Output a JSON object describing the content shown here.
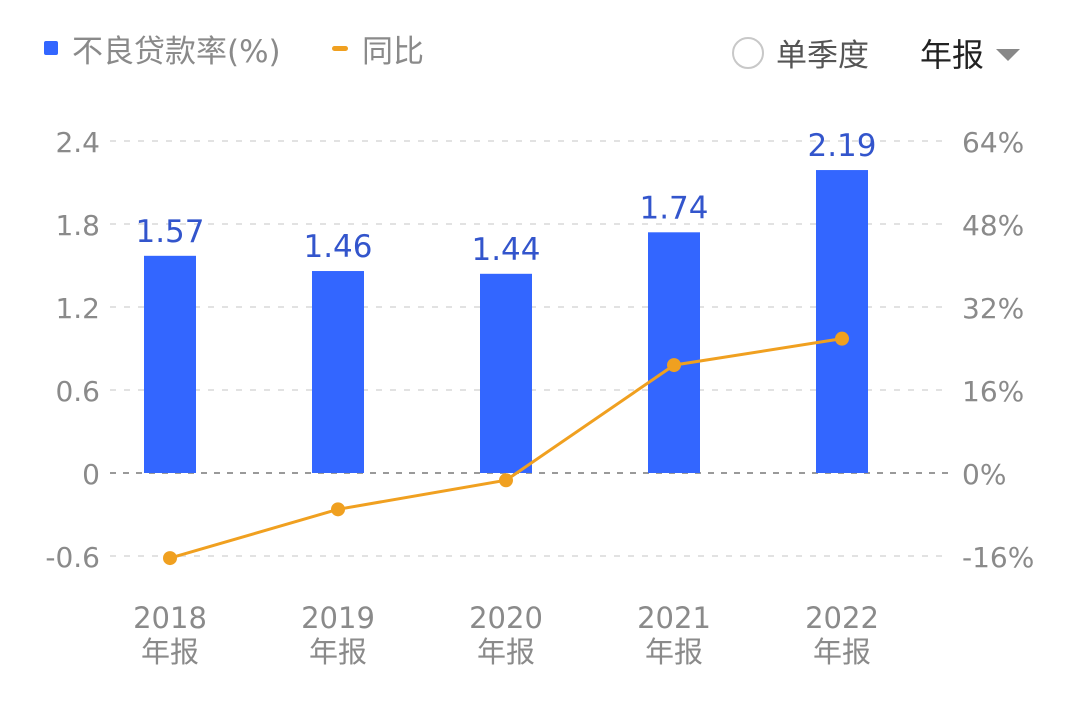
{
  "legend": {
    "bar_label": "不良贷款率(%)",
    "line_label": "同比"
  },
  "controls": {
    "single_quarter": "单季度",
    "period_selected": "年报"
  },
  "colors": {
    "bar": "#3366ff",
    "line": "#f0a020",
    "grid": "#e2e2e2",
    "zero_line": "#9a9a9a",
    "tick": "#8a8a8a",
    "value_label": "#3355cc"
  },
  "chart_data": {
    "type": "bar",
    "categories": [
      "2018",
      "2019",
      "2020",
      "2021",
      "2022"
    ],
    "category_sublabel": "年报",
    "series": [
      {
        "name": "不良贷款率(%)",
        "type": "bar",
        "axis": "left",
        "values": [
          1.57,
          1.46,
          1.44,
          1.74,
          2.19
        ]
      },
      {
        "name": "同比",
        "type": "line",
        "axis": "right",
        "values": [
          -16.4,
          -7.0,
          -1.4,
          20.8,
          25.9
        ]
      }
    ],
    "left_axis": {
      "ylim": [
        -0.6,
        2.4
      ],
      "ticks": [
        "2.4",
        "1.8",
        "1.2",
        "0.6",
        "0",
        "-0.6"
      ]
    },
    "right_axis": {
      "ylim": [
        -16,
        64
      ],
      "ticks": [
        "64%",
        "48%",
        "32%",
        "16%",
        "0%",
        "-16%"
      ]
    },
    "data_labels": [
      "1.57",
      "1.46",
      "1.44",
      "1.74",
      "2.19"
    ],
    "grid": true
  }
}
